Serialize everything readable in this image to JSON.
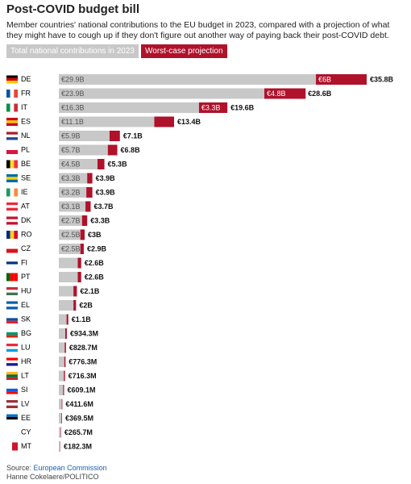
{
  "chart_data": {
    "type": "stacked-bar-horizontal",
    "title": "Post-COVID budget bill",
    "subtitle": "Member countries' national contributions to the EU budget in 2023, compared with a projection of what they might have to cough up if they don't figure out another way of paying back their post-COVID debt.",
    "categories": [
      "DE",
      "FR",
      "IT",
      "ES",
      "NL",
      "PL",
      "BE",
      "SE",
      "IE",
      "AT",
      "DK",
      "RO",
      "CZ",
      "FI",
      "PT",
      "HU",
      "EL",
      "SK",
      "BG",
      "LU",
      "HR",
      "LT",
      "SI",
      "LV",
      "EE",
      "CY",
      "MT"
    ],
    "series": [
      {
        "name": "Total national contributions in 2023",
        "color": "#c8c8c8",
        "values": [
          29.9,
          23.9,
          16.3,
          11.1,
          5.9,
          5.7,
          4.5,
          3.3,
          3.2,
          3.1,
          2.7,
          2.5,
          2.5,
          2.2,
          2.2,
          1.7,
          1.7,
          0.9,
          0.75,
          0.68,
          0.64,
          0.59,
          0.5,
          0.34,
          0.3,
          0.22,
          0.15
        ],
        "value_labels": [
          "€29.9B",
          "€23.9B",
          "€16.3B",
          "€11.1B",
          "€5.9B",
          "€5.7B",
          "€4.5B",
          "€3.3B",
          "€3.2B",
          "€3.1B",
          "€2.7B",
          "€2.5B",
          "€2.5B",
          null,
          null,
          null,
          null,
          null,
          null,
          null,
          null,
          null,
          null,
          null,
          null,
          null,
          null
        ]
      },
      {
        "name": "Worst-case projection",
        "color": "#b0112b",
        "values": [
          5.9,
          4.8,
          3.3,
          2.3,
          1.2,
          1.1,
          0.8,
          0.6,
          0.7,
          0.6,
          0.6,
          0.5,
          0.4,
          0.4,
          0.4,
          0.4,
          0.3,
          0.2,
          0.18,
          0.15,
          0.14,
          0.13,
          0.11,
          0.07,
          0.07,
          0.05,
          0.03
        ],
        "value_labels": [
          "€6B",
          "€4.8B",
          "€3.3B",
          null,
          null,
          null,
          null,
          null,
          null,
          null,
          null,
          null,
          null,
          null,
          null,
          null,
          null,
          null,
          null,
          null,
          null,
          null,
          null,
          null,
          null,
          null,
          null
        ]
      }
    ],
    "totals": {
      "values": [
        35.8,
        28.6,
        19.6,
        13.4,
        7.1,
        6.8,
        5.3,
        3.9,
        3.9,
        3.7,
        3.3,
        3,
        2.9,
        2.6,
        2.6,
        2.1,
        2,
        1.1,
        0.9343,
        0.8287,
        0.7763,
        0.7163,
        0.6091,
        0.4116,
        0.3695,
        0.2657,
        0.1823
      ],
      "value_labels": [
        "€35.8B",
        "€28.6B",
        "€19.6B",
        "€13.4B",
        "€7.1B",
        "€6.8B",
        "€5.3B",
        "€3.9B",
        "€3.9B",
        "€3.7B",
        "€3.3B",
        "€3B",
        "€2.9B",
        "€2.6B",
        "€2.6B",
        "€2.1B",
        "€2B",
        "€1.1B",
        "€934.3M",
        "€828.7M",
        "€776.3M",
        "€716.3M",
        "€609.1M",
        "€411.6M",
        "€369.5M",
        "€265.7M",
        "€182.3M"
      ]
    },
    "source_label": "Source:",
    "source": "European Commission",
    "credit": "Hanne Cokelaere/POLITICO"
  }
}
